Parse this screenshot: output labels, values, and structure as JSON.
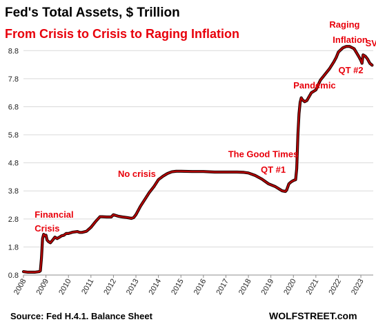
{
  "chart_data": {
    "type": "line",
    "title": "Fed's Total Assets, $ Trillion",
    "subtitle": "From Crisis to Crisis to Raging Inflation",
    "ylim": [
      0.8,
      9.3
    ],
    "xlim": [
      2008.0,
      2023.55
    ],
    "y_ticks": [
      "0.8",
      "1.8",
      "2.8",
      "3.8",
      "4.8",
      "5.8",
      "6.8",
      "7.8",
      "8.8"
    ],
    "x_ticks": [
      "2008",
      "2009",
      "2010",
      "2011",
      "2012",
      "2013",
      "2014",
      "2015",
      "2016",
      "2017",
      "2018",
      "2019",
      "2020",
      "2021",
      "2022",
      "2023"
    ],
    "grid": "horizontal",
    "line_color": "#b80000",
    "series": [
      {
        "x": [
          2008.0,
          2008.2,
          2008.5,
          2008.7,
          2008.75,
          2008.8,
          2008.85,
          2008.9,
          2008.95,
          2009.0,
          2009.05,
          2009.1,
          2009.2,
          2009.3,
          2009.4,
          2009.5,
          2009.6,
          2009.7,
          2009.8,
          2009.9,
          2010.0,
          2010.2,
          2010.4,
          2010.5,
          2010.6,
          2010.8,
          2011.0,
          2011.2,
          2011.4,
          2011.5,
          2011.7,
          2011.9,
          2012.0,
          2012.2,
          2012.4,
          2012.6,
          2012.8,
          2012.9,
          2013.0,
          2013.2,
          2013.4,
          2013.6,
          2013.8,
          2014.0,
          2014.2,
          2014.4,
          2014.6,
          2014.8,
          2015.0,
          2015.5,
          2016.0,
          2016.5,
          2017.0,
          2017.5,
          2017.8,
          2018.0,
          2018.3,
          2018.6,
          2018.9,
          2019.2,
          2019.5,
          2019.65,
          2019.7,
          2019.8,
          2019.9,
          2020.0,
          2020.1,
          2020.15,
          2020.2,
          2020.25,
          2020.3,
          2020.35,
          2020.4,
          2020.5,
          2020.6,
          2020.8,
          2021.0,
          2021.2,
          2021.4,
          2021.6,
          2021.8,
          2021.9,
          2022.0,
          2022.2,
          2022.35,
          2022.5,
          2022.7,
          2022.9,
          2023.0,
          2023.05,
          2023.1,
          2023.2,
          2023.3,
          2023.4,
          2023.5
        ],
        "values": [
          0.92,
          0.9,
          0.9,
          0.92,
          0.95,
          1.4,
          2.1,
          2.25,
          2.2,
          2.22,
          2.05,
          2.0,
          1.95,
          2.05,
          2.15,
          2.1,
          2.15,
          2.2,
          2.22,
          2.28,
          2.28,
          2.33,
          2.35,
          2.32,
          2.32,
          2.36,
          2.5,
          2.7,
          2.88,
          2.88,
          2.87,
          2.87,
          2.95,
          2.9,
          2.87,
          2.85,
          2.82,
          2.85,
          2.95,
          3.25,
          3.5,
          3.75,
          3.95,
          4.2,
          4.32,
          4.42,
          4.48,
          4.5,
          4.5,
          4.49,
          4.49,
          4.47,
          4.47,
          4.47,
          4.46,
          4.44,
          4.35,
          4.22,
          4.05,
          3.95,
          3.8,
          3.78,
          3.83,
          4.05,
          4.12,
          4.17,
          4.2,
          4.6,
          5.8,
          6.55,
          6.95,
          7.12,
          7.05,
          6.98,
          7.02,
          7.3,
          7.4,
          7.75,
          7.95,
          8.15,
          8.4,
          8.55,
          8.75,
          8.9,
          8.95,
          8.95,
          8.87,
          8.6,
          8.45,
          8.35,
          8.65,
          8.6,
          8.5,
          8.35,
          8.28
        ]
      }
    ],
    "annotations": [
      {
        "text": "Financial",
        "x": 2008.5,
        "y": 2.85
      },
      {
        "text": "Crisis",
        "x": 2008.5,
        "y": 2.35
      },
      {
        "text": "No crisis",
        "x": 2012.2,
        "y": 4.3
      },
      {
        "text": "The Good Times",
        "x": 2017.1,
        "y": 5.0
      },
      {
        "text": "QT #1",
        "x": 2018.55,
        "y": 4.45
      },
      {
        "text": "Pandemic",
        "x": 2020.0,
        "y": 7.45
      },
      {
        "text": "Raging",
        "x": 2021.6,
        "y": 9.62
      },
      {
        "text": "Inflation",
        "x": 2021.75,
        "y": 9.08
      },
      {
        "text": "QT #2",
        "x": 2022.0,
        "y": 8.0
      },
      {
        "text": "SVB",
        "x": 2023.2,
        "y": 8.95
      }
    ]
  },
  "footer": {
    "source": "Source: Fed H.4.1. Balance Sheet",
    "brand": "WOLFSTREET.com"
  }
}
